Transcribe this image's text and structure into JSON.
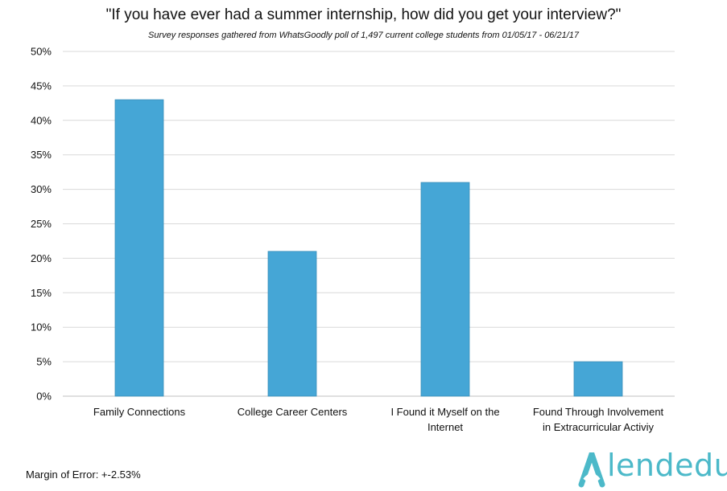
{
  "title": "\"If you have ever had a summer internship, how did you get your interview?\"",
  "subtitle": "Survey responses gathered from WhatsGoodly poll of 1,497 current college students from 01/05/17 - 06/21/17",
  "footnote": "Margin of Error: +-2.53%",
  "logo": {
    "text": "lendedu",
    "icon": "lendedu-logo-icon",
    "color": "#4cb9c9"
  },
  "colors": {
    "bar": "#45a6d6",
    "grid": "#d9d9d9",
    "text": "#111111"
  },
  "chart_data": {
    "type": "bar",
    "title": "\"If you have ever had a summer internship, how did you get your interview?\"",
    "subtitle": "Survey responses gathered from WhatsGoodly poll of 1,497 current college students from 01/05/17 - 06/21/17",
    "categories": [
      [
        "Family Connections"
      ],
      [
        "College Career Centers"
      ],
      [
        "I Found it Myself on the",
        "Internet"
      ],
      [
        "Found Through Involvement",
        "in Extracurricular Activiy"
      ]
    ],
    "values": [
      43,
      21,
      31,
      5
    ],
    "ylim": [
      0,
      50
    ],
    "yticks": [
      0,
      5,
      10,
      15,
      20,
      25,
      30,
      35,
      40,
      45,
      50
    ],
    "ytick_labels": [
      "0%",
      "5%",
      "10%",
      "15%",
      "20%",
      "25%",
      "30%",
      "35%",
      "40%",
      "45%",
      "50%"
    ],
    "grid": true,
    "xlabel": "",
    "ylabel": ""
  }
}
